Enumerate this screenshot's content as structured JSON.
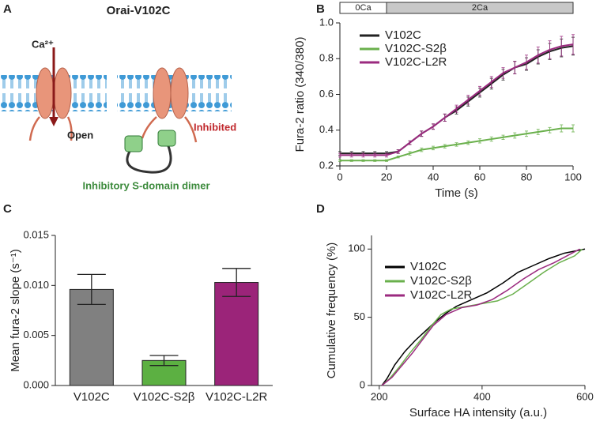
{
  "panel_labels": [
    "A",
    "B",
    "C",
    "D"
  ],
  "diagram": {
    "title": "Orai-V102C",
    "ion": "Ca²⁺",
    "open_label": "Open",
    "inhibited_label": "Inhibited",
    "dimer_label": "Inhibitory S-domain dimer"
  },
  "chart_data": [
    {
      "type": "line",
      "xlabel": "Time (s)",
      "ylabel": "Fura-2 ratio (340/380)",
      "phases": [
        {
          "label": "0Ca",
          "start": 0,
          "end": 20
        },
        {
          "label": "2Ca",
          "start": 20,
          "end": 100
        }
      ],
      "x": [
        0,
        5,
        10,
        15,
        20,
        25,
        30,
        35,
        40,
        45,
        50,
        55,
        60,
        65,
        70,
        75,
        80,
        85,
        90,
        95,
        100
      ],
      "series": [
        {
          "name": "V102C",
          "color": "#222222",
          "values": [
            0.27,
            0.27,
            0.27,
            0.27,
            0.27,
            0.28,
            0.33,
            0.38,
            0.42,
            0.47,
            0.51,
            0.56,
            0.61,
            0.66,
            0.71,
            0.75,
            0.77,
            0.81,
            0.84,
            0.86,
            0.87
          ],
          "errors": [
            0.01,
            0.01,
            0.01,
            0.01,
            0.01,
            0.01,
            0.01,
            0.015,
            0.015,
            0.02,
            0.02,
            0.025,
            0.025,
            0.03,
            0.03,
            0.035,
            0.035,
            0.04,
            0.045,
            0.05,
            0.05
          ]
        },
        {
          "name": "V102C-S2β",
          "color": "#6ab04c",
          "values": [
            0.23,
            0.23,
            0.23,
            0.23,
            0.23,
            0.25,
            0.27,
            0.29,
            0.3,
            0.31,
            0.32,
            0.33,
            0.34,
            0.35,
            0.36,
            0.37,
            0.38,
            0.39,
            0.4,
            0.41,
            0.41
          ],
          "errors": [
            0.005,
            0.005,
            0.005,
            0.005,
            0.005,
            0.005,
            0.01,
            0.01,
            0.01,
            0.01,
            0.01,
            0.01,
            0.012,
            0.012,
            0.012,
            0.015,
            0.015,
            0.015,
            0.015,
            0.02,
            0.02
          ]
        },
        {
          "name": "V102C-L2R",
          "color": "#9b2a7f",
          "values": [
            0.26,
            0.26,
            0.26,
            0.26,
            0.26,
            0.28,
            0.33,
            0.38,
            0.42,
            0.47,
            0.52,
            0.57,
            0.62,
            0.67,
            0.72,
            0.75,
            0.78,
            0.82,
            0.85,
            0.87,
            0.88
          ],
          "errors": [
            0.01,
            0.01,
            0.01,
            0.01,
            0.01,
            0.01,
            0.01,
            0.015,
            0.015,
            0.02,
            0.02,
            0.025,
            0.025,
            0.03,
            0.03,
            0.035,
            0.04,
            0.045,
            0.05,
            0.055,
            0.055
          ]
        }
      ],
      "xlim": [
        0,
        100
      ],
      "xticks": [
        0,
        20,
        40,
        60,
        80,
        100
      ],
      "ylim": [
        0.2,
        1.0
      ],
      "yticks": [
        0.2,
        0.4,
        0.6,
        0.8,
        {
          "value": 1.0,
          "label": "1.0"
        }
      ]
    },
    {
      "type": "bar",
      "ylabel": "Mean fura-2 slope (s⁻¹)",
      "categories": [
        "V102C",
        "V102C-S2β",
        "V102C-L2R"
      ],
      "values": [
        0.0096,
        0.0025,
        0.0103
      ],
      "errors": [
        0.0015,
        0.0005,
        0.0014
      ],
      "colors": [
        "#808080",
        "#5cb042",
        "#9b2479"
      ],
      "ylim": [
        0,
        0.015
      ],
      "yticks": [
        {
          "value": 0,
          "label": "0.000"
        },
        {
          "value": 0.005,
          "label": "0.005"
        },
        {
          "value": 0.01,
          "label": "0.010"
        },
        {
          "value": 0.015,
          "label": "0.015"
        }
      ]
    },
    {
      "type": "step",
      "xlabel": "Surface HA intensity (a.u.)",
      "ylabel": "Cumulative frequency (%)",
      "series": [
        {
          "name": "V102C",
          "color": "#000000",
          "x": [
            205,
            215,
            230,
            250,
            270,
            290,
            310,
            330,
            350,
            380,
            410,
            440,
            470,
            500,
            530,
            560,
            600
          ],
          "values": [
            0,
            5,
            15,
            25,
            33,
            40,
            47,
            53,
            58,
            63,
            68,
            75,
            83,
            88,
            93,
            97,
            100
          ]
        },
        {
          "name": "V102C-S2β",
          "color": "#6ab04c",
          "x": [
            205,
            220,
            240,
            260,
            280,
            300,
            320,
            340,
            370,
            400,
            430,
            460,
            490,
            520,
            550,
            580,
            595
          ],
          "values": [
            0,
            5,
            14,
            24,
            33,
            43,
            52,
            56,
            58,
            60,
            62,
            67,
            75,
            83,
            90,
            95,
            100
          ]
        },
        {
          "name": "V102C-L2R",
          "color": "#9b2a7f",
          "x": [
            205,
            225,
            245,
            265,
            285,
            305,
            330,
            360,
            390,
            420,
            450,
            480,
            510,
            540,
            570,
            590
          ],
          "values": [
            0,
            6,
            15,
            24,
            34,
            44,
            52,
            57,
            59,
            63,
            70,
            78,
            85,
            90,
            96,
            100
          ]
        }
      ],
      "xlim": [
        185,
        600
      ],
      "xticks": [
        200,
        400,
        600
      ],
      "ylim": [
        0,
        110
      ],
      "yticks": [
        0,
        50,
        100
      ]
    }
  ]
}
